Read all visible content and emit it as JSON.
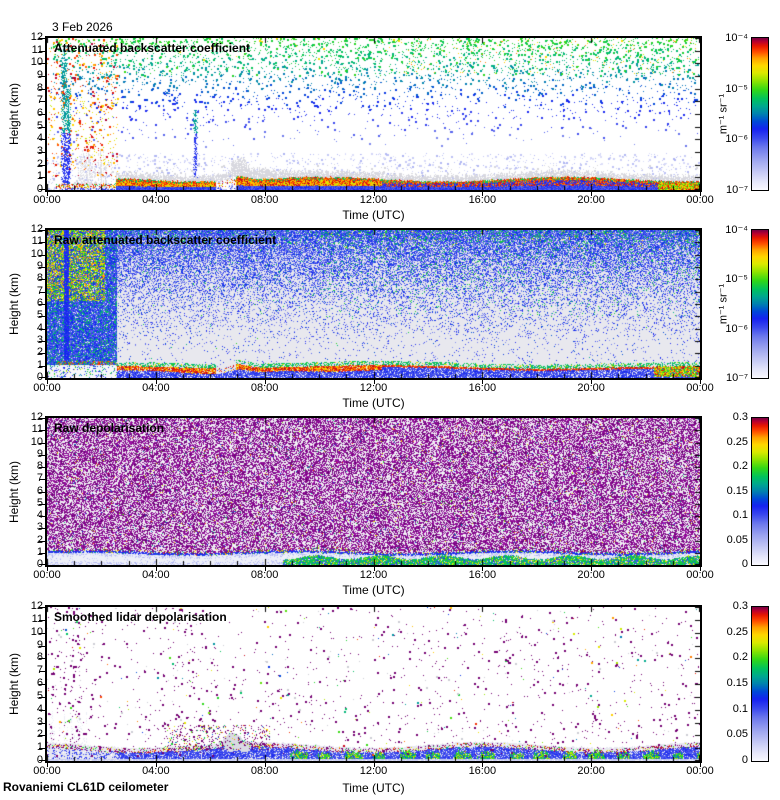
{
  "page": {
    "date_label": "3 Feb 2026",
    "footer": "Rovaniemi CL61D ceilometer",
    "background": "#ffffff"
  },
  "axes": {
    "xlabel": "Time (UTC)",
    "ylabel": "Height (km)",
    "x_ticklabels": [
      "00:00",
      "04:00",
      "08:00",
      "12:00",
      "16:00",
      "20:00",
      "00:00"
    ],
    "y_ticklabels": [
      "12",
      "11",
      "10",
      "9",
      "8",
      "7",
      "6",
      "5",
      "4",
      "3",
      "2",
      "1",
      "0"
    ],
    "x_range_hours": [
      0,
      24
    ],
    "y_range_km": [
      0,
      12
    ],
    "x_minor_tick_hours": 1,
    "x_major_tick_hours": 4
  },
  "colormap": {
    "description": "jet-like: pale lavender (low) through blue, teal, green, yellow, orange, red to dark maroon (high)",
    "stops": [
      [
        0.0,
        "#f8f8fe"
      ],
      [
        0.05,
        "#e6e7fb"
      ],
      [
        0.12,
        "#c4c8f5"
      ],
      [
        0.2,
        "#9ba3ef"
      ],
      [
        0.28,
        "#6c78ec"
      ],
      [
        0.34,
        "#3b49ee"
      ],
      [
        0.4,
        "#1622f0"
      ],
      [
        0.45,
        "#0049d8"
      ],
      [
        0.5,
        "#0081b0"
      ],
      [
        0.55,
        "#00a890"
      ],
      [
        0.6,
        "#00c25e"
      ],
      [
        0.66,
        "#32d816"
      ],
      [
        0.72,
        "#92e400"
      ],
      [
        0.77,
        "#daea00"
      ],
      [
        0.82,
        "#ffd800"
      ],
      [
        0.87,
        "#ffa000"
      ],
      [
        0.91,
        "#ff5000"
      ],
      [
        0.95,
        "#e81800"
      ],
      [
        0.98,
        "#b80030"
      ],
      [
        1.0,
        "#7e0040"
      ]
    ]
  },
  "chart_data": [
    {
      "type": "heatmap",
      "title": "Attenuated backscatter coefficient",
      "colorbar": {
        "scale": "log",
        "ticklabels": [
          "10⁻⁴",
          "10⁻⁵",
          "10⁻⁶",
          "10⁻⁷"
        ],
        "unit": "m⁻¹ sr⁻¹",
        "range_min": "1e-7",
        "range_max": "1e-4"
      },
      "features": [
        "strong surface aerosol layer 0-1 km (red/orange, ~1e-4) across whole day, thinning to a red line over blue layer after ~12:00",
        "gray cloud patches at 1-2 km between ~02:30 and 24:00, band lifts near 07:00 with gap ~06:20-06:50",
        "precipitation/cloud streak at ~00:40 reaching 11 km (blue/teal column), smaller streak ~05:30 up to 6 km",
        "red/orange noise speckles at all heights during 00:00-02:30 event",
        "height-stratified sparse noise: green near 9-12 km, teal 7-9 km, blue 4-7 km, pale lavender below 4 km",
        "yellow/orange speckles near 9-12 km after ~13:00"
      ],
      "render": {
        "kind": "p1",
        "seed": 11,
        "event_end_h": 2.5,
        "surface_top_km": 0.85,
        "rise_t": 7.05,
        "streaks": [
          {
            "t": 0.62,
            "h0": 0.4,
            "h1": 11.4,
            "w": 3
          },
          {
            "t": 0.78,
            "h0": 0.4,
            "h1": 8,
            "w": 2
          },
          {
            "t": 5.45,
            "h0": 1,
            "h1": 6.3,
            "w": 2
          }
        ]
      }
    },
    {
      "type": "heatmap",
      "title": "Raw attenuated backscatter coefficient",
      "colorbar": {
        "scale": "log",
        "ticklabels": [
          "10⁻⁴",
          "10⁻⁵",
          "10⁻⁶",
          "10⁻⁷"
        ],
        "unit": "m⁻¹ sr⁻¹",
        "range_min": "1e-7",
        "range_max": "1e-4"
      },
      "features": [
        "dense blue shot-noise increasing with height over gray background (noise-free zone ~1.5-4 km)",
        "orange/yellow/green high-noise patch 00:00-02:10 above ~6.5 km; full-column noise until ~02:30",
        "solid blue streak at ~00:40 full height",
        "green-tinted noise mixed in above ~5 km, strongest after ~10:00",
        "surface layer: thick red/orange band ~0.3-1 km until ~12:00, then thin red line over blue sub-km layer",
        "colorful (orange/yellow/green) surface band after ~22:20"
      ],
      "render": {
        "kind": "p2",
        "seed": 22,
        "event_end_h": 2.55,
        "red_line_km": 0.92,
        "rise_t": 7.05
      }
    },
    {
      "type": "heatmap",
      "title": "Raw depolarisation",
      "colorbar": {
        "scale": "linear",
        "ticklabels": [
          "0.3",
          "0.25",
          "0.2",
          "0.15",
          "0.1",
          "0.05",
          "0"
        ],
        "range_min": 0,
        "range_max": 0.3
      },
      "features": [
        "saturated purple/magenta random noise (values ≥0.3) above ~1.1 km everywhere, with white gaps and ~3% colorful speckles",
        "low-depolarisation pale band 0-1 km with light-blue wisps and broken blue line at its top edge",
        "green/cyan high-depolarisation surface band 0-0.7 km from ~08:40 to 24:00",
        "colorful speckles along the 1 km boundary"
      ],
      "render": {
        "kind": "p3",
        "seed": 33,
        "noise_fill_fraction": 0.6,
        "boundary_km": 1.05,
        "green_band_start_h": 8.65
      }
    },
    {
      "type": "heatmap",
      "title": "Smoothed lidar depolarisation",
      "colorbar": {
        "scale": "linear",
        "ticklabels": [
          "0.3",
          "0.25",
          "0.2",
          "0.15",
          "0.1",
          "0.05",
          "0"
        ],
        "range_min": 0,
        "range_max": 0.3
      },
      "features": [
        "sparse purple speckles on white, denser in vertical columns near 00:50, 04:45-05:50, 14:20, 16:55",
        "pale gray haze and blue low-depolarisation band 0-1 km all day, gray puff near 06:50 at ~1.5 km",
        "purple/red speckle row along band top (~1 km)",
        "patchy bright green/cyan blobs 0.15-0.6 km after ~08:50",
        "speckle cluster 0.8-2.5 km between ~04:30 and 08:30"
      ],
      "render": {
        "kind": "p4",
        "seed": 44,
        "band_top_km": 0.88,
        "green_start_h": 8.8,
        "puffs": [
          {
            "t": 6.8,
            "h": 1.5
          },
          {
            "t": 7.25,
            "h": 1.15
          }
        ]
      }
    }
  ]
}
